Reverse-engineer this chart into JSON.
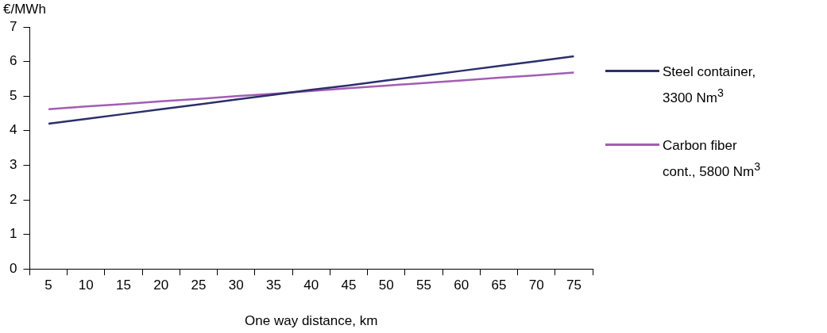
{
  "chart_data": {
    "type": "line",
    "xlabel": "One way distance, km",
    "ylabel": "€/MWh",
    "categories": [
      "5",
      "10",
      "15",
      "20",
      "25",
      "30",
      "35",
      "40",
      "45",
      "50",
      "55",
      "60",
      "65",
      "70",
      "75"
    ],
    "series": [
      {
        "name": "Steel container, 3300 Nm$^{3}$",
        "color": "#2b2f6b",
        "values": [
          4.2,
          4.34,
          4.48,
          4.62,
          4.76,
          4.9,
          5.04,
          5.18,
          5.31,
          5.45,
          5.59,
          5.73,
          5.87,
          6.01,
          6.15
        ]
      },
      {
        "name": "Carbon fiber cont., 5800 Nm$^{3}$",
        "color": "#a35db3",
        "values": [
          4.62,
          4.7,
          4.77,
          4.85,
          4.92,
          5.0,
          5.07,
          5.15,
          5.23,
          5.3,
          5.38,
          5.45,
          5.53,
          5.6,
          5.68
        ]
      }
    ],
    "ylim": [
      0,
      7
    ],
    "yticks": [
      0,
      1,
      2,
      3,
      4,
      5,
      6,
      7
    ],
    "grid": false,
    "legend": "right",
    "marker": "none",
    "line_style": "solid"
  }
}
